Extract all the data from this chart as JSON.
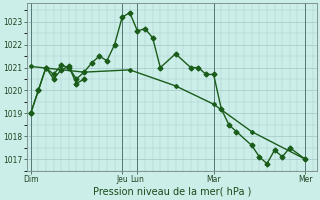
{
  "background_color": "#cceee8",
  "grid_color": "#aacccc",
  "line_color": "#1a5c1a",
  "xlabel": "Pression niveau de la mer( hPa )",
  "ylim": [
    1016.5,
    1023.8
  ],
  "yticks": [
    1017,
    1018,
    1019,
    1020,
    1021,
    1022,
    1023
  ],
  "xtick_labels": [
    "Dim",
    "Jeu",
    "Lun",
    "Mar",
    "Mer"
  ],
  "xtick_positions": [
    0,
    12,
    14,
    24,
    36
  ],
  "vlines": [
    0,
    12,
    14,
    24,
    36
  ],
  "xlim": [
    -0.5,
    37.5
  ],
  "line1_x": [
    0,
    1,
    2,
    3,
    4,
    5,
    6,
    7,
    8,
    9,
    10,
    11,
    12,
    13,
    14,
    15,
    16,
    17,
    19,
    21,
    22,
    23,
    24,
    25,
    26,
    27,
    29,
    30,
    31,
    32,
    33,
    34,
    36
  ],
  "line1_y": [
    1019.0,
    1020.0,
    1021.0,
    1020.7,
    1021.1,
    1021.0,
    1020.5,
    1020.8,
    1021.2,
    1021.5,
    1021.3,
    1022.0,
    1023.2,
    1023.4,
    1022.6,
    1022.7,
    1022.3,
    1021.0,
    1021.6,
    1021.0,
    1021.0,
    1020.7,
    1020.7,
    1019.2,
    1018.5,
    1018.2,
    1017.6,
    1017.1,
    1016.8,
    1017.4,
    1017.1,
    1017.5,
    1017.0
  ],
  "line2_x": [
    0,
    1,
    2,
    3,
    4,
    5,
    6,
    7
  ],
  "line2_y": [
    1019.0,
    1020.0,
    1021.0,
    1020.5,
    1020.9,
    1021.05,
    1020.3,
    1020.5
  ],
  "line3_x": [
    0,
    7,
    13,
    19,
    24,
    29,
    36
  ],
  "line3_y": [
    1021.05,
    1020.8,
    1020.9,
    1020.2,
    1019.4,
    1018.2,
    1017.0
  ]
}
